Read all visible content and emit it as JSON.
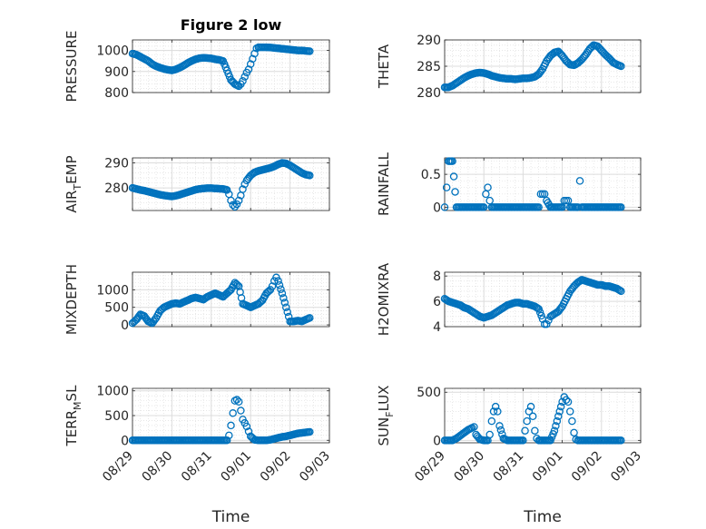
{
  "figure": {
    "title": "Figure 2 low",
    "marker_color": "#0072BD",
    "xlabel": "Time",
    "xticks": [
      "08/29",
      "08/30",
      "08/31",
      "09/01",
      "09/02",
      "09/03"
    ]
  },
  "chart_data": [
    {
      "type": "scatter",
      "title": "Figure 2 low",
      "ylabel": "PRESSURE",
      "ylim": [
        800,
        1050
      ],
      "yticks": [
        "800",
        "900",
        "1000"
      ],
      "ytick_values": [
        800,
        900,
        1000
      ],
      "xlim": [
        0,
        5
      ],
      "grid": true,
      "show_xticklabels": false,
      "x": [
        0.0,
        0.1,
        0.2,
        0.3,
        0.4,
        0.5,
        0.6,
        0.7,
        0.8,
        0.9,
        1.0,
        1.1,
        1.2,
        1.3,
        1.4,
        1.5,
        1.6,
        1.7,
        1.8,
        1.9,
        2.0,
        2.1,
        2.2,
        2.3,
        2.4,
        2.5,
        2.6,
        2.7,
        2.75,
        2.8,
        2.85,
        2.9,
        2.95,
        3.0,
        3.05,
        3.1,
        3.15,
        3.2,
        3.3,
        3.4,
        3.5,
        3.6,
        3.7,
        3.8,
        3.9,
        4.0,
        4.1,
        4.2,
        4.3,
        4.4,
        4.5
      ],
      "y": [
        985,
        980,
        970,
        960,
        950,
        935,
        925,
        918,
        912,
        908,
        905,
        910,
        918,
        928,
        940,
        950,
        958,
        963,
        965,
        964,
        962,
        958,
        955,
        950,
        905,
        860,
        840,
        830,
        840,
        855,
        875,
        895,
        910,
        935,
        960,
        985,
        1010,
        1015,
        1015,
        1015,
        1014,
        1012,
        1010,
        1008,
        1006,
        1004,
        1002,
        1000,
        1000,
        998,
        996
      ]
    },
    {
      "type": "scatter",
      "title": "",
      "ylabel": "THETA",
      "ylim": [
        280,
        290
      ],
      "yticks": [
        "280",
        "285",
        "290"
      ],
      "ytick_values": [
        280,
        285,
        290
      ],
      "xlim": [
        0,
        5
      ],
      "grid": true,
      "show_xticklabels": false,
      "x": [
        0.0,
        0.1,
        0.2,
        0.3,
        0.4,
        0.5,
        0.6,
        0.7,
        0.8,
        0.9,
        1.0,
        1.1,
        1.2,
        1.3,
        1.4,
        1.5,
        1.6,
        1.7,
        1.8,
        1.9,
        2.0,
        2.1,
        2.2,
        2.3,
        2.4,
        2.5,
        2.6,
        2.7,
        2.8,
        2.9,
        3.0,
        3.1,
        3.2,
        3.3,
        3.4,
        3.5,
        3.6,
        3.7,
        3.8,
        3.9,
        4.0,
        4.1,
        4.2,
        4.3,
        4.4,
        4.5
      ],
      "y": [
        281.0,
        281.0,
        281.3,
        281.8,
        282.3,
        282.8,
        283.2,
        283.5,
        283.7,
        283.8,
        283.7,
        283.5,
        283.2,
        283.0,
        282.8,
        282.7,
        282.6,
        282.6,
        282.5,
        282.6,
        282.7,
        282.7,
        282.8,
        283.0,
        283.5,
        284.5,
        286.0,
        287.0,
        287.6,
        287.8,
        287.0,
        286.0,
        285.3,
        285.2,
        285.6,
        286.3,
        287.2,
        288.3,
        289.0,
        288.8,
        288.0,
        287.2,
        286.5,
        285.7,
        285.3,
        285.0
      ]
    },
    {
      "type": "scatter",
      "title": "",
      "ylabel": "AIR_TEMP",
      "ylim": [
        271,
        292
      ],
      "yticks": [
        "280",
        "290"
      ],
      "ytick_values": [
        280,
        290
      ],
      "xlim": [
        0,
        5
      ],
      "grid": true,
      "show_xticklabels": false,
      "x": [
        0.0,
        0.1,
        0.2,
        0.3,
        0.4,
        0.5,
        0.6,
        0.7,
        0.8,
        0.9,
        1.0,
        1.1,
        1.2,
        1.3,
        1.4,
        1.5,
        1.6,
        1.7,
        1.8,
        1.9,
        2.0,
        2.1,
        2.2,
        2.3,
        2.4,
        2.45,
        2.5,
        2.55,
        2.6,
        2.65,
        2.7,
        2.75,
        2.8,
        2.85,
        2.9,
        3.0,
        3.1,
        3.2,
        3.3,
        3.4,
        3.5,
        3.6,
        3.7,
        3.8,
        3.9,
        4.0,
        4.1,
        4.2,
        4.3,
        4.4,
        4.5
      ],
      "y": [
        280.0,
        279.6,
        279.2,
        278.9,
        278.5,
        278.1,
        277.7,
        277.3,
        277.0,
        276.8,
        276.6,
        276.9,
        277.3,
        277.8,
        278.3,
        278.8,
        279.3,
        279.6,
        279.8,
        279.9,
        279.9,
        279.8,
        279.7,
        279.6,
        279.2,
        277.5,
        275.0,
        273.2,
        272.5,
        273.5,
        275.0,
        277.0,
        279.5,
        281.5,
        283.0,
        285.0,
        286.2,
        286.8,
        287.2,
        287.6,
        288.0,
        288.6,
        289.4,
        290.0,
        289.8,
        289.0,
        288.0,
        287.0,
        286.0,
        285.3,
        285.0
      ]
    },
    {
      "type": "scatter",
      "title": "",
      "ylabel": "RAINFALL",
      "ylim": [
        -0.05,
        0.75
      ],
      "yticks": [
        "0",
        "0.5"
      ],
      "ytick_values": [
        0,
        0.5
      ],
      "xlim": [
        0,
        5
      ],
      "grid": true,
      "show_xticklabels": false,
      "x": [
        0.0,
        0.05,
        0.1,
        0.2,
        0.3,
        0.4,
        0.5,
        0.6,
        0.7,
        0.8,
        0.9,
        1.0,
        1.05,
        1.1,
        1.15,
        1.2,
        1.3,
        1.4,
        1.5,
        1.6,
        1.7,
        1.8,
        1.9,
        2.0,
        2.1,
        2.2,
        2.3,
        2.4,
        2.45,
        2.5,
        2.55,
        2.6,
        2.7,
        2.8,
        2.9,
        3.0,
        3.05,
        3.1,
        3.15,
        3.2,
        3.3,
        3.4,
        3.45,
        3.5,
        3.6,
        3.7,
        3.8,
        3.9,
        4.0,
        4.1,
        4.2,
        4.3,
        4.4,
        4.5
      ],
      "y": [
        0.0,
        0.3,
        0.7,
        0.7,
        0.0,
        0.0,
        0.0,
        0.0,
        0.0,
        0.0,
        0.0,
        0.0,
        0.2,
        0.3,
        0.1,
        0.0,
        0.0,
        0.0,
        0.0,
        0.0,
        0.0,
        0.0,
        0.0,
        0.0,
        0.0,
        0.0,
        0.0,
        0.0,
        0.2,
        0.2,
        0.2,
        0.1,
        0.0,
        0.0,
        0.0,
        0.0,
        0.1,
        0.1,
        0.1,
        0.0,
        0.0,
        0.0,
        0.4,
        0.0,
        0.0,
        0.0,
        0.0,
        0.0,
        0.0,
        0.0,
        0.0,
        0.0,
        0.0,
        0.0
      ]
    },
    {
      "type": "scatter",
      "title": "",
      "ylabel": "MIXDEPTH",
      "ylim": [
        -50,
        1500
      ],
      "yticks": [
        "0",
        "500",
        "1000"
      ],
      "ytick_values": [
        0,
        500,
        1000
      ],
      "xlim": [
        0,
        5
      ],
      "grid": true,
      "show_xticklabels": false,
      "x": [
        0.0,
        0.1,
        0.2,
        0.3,
        0.4,
        0.5,
        0.6,
        0.7,
        0.8,
        0.9,
        1.0,
        1.1,
        1.2,
        1.3,
        1.4,
        1.5,
        1.6,
        1.7,
        1.8,
        1.9,
        2.0,
        2.1,
        2.2,
        2.3,
        2.4,
        2.5,
        2.6,
        2.7,
        2.8,
        2.9,
        3.0,
        3.1,
        3.2,
        3.3,
        3.4,
        3.5,
        3.55,
        3.6,
        3.65,
        3.7,
        3.8,
        3.9,
        4.0,
        4.1,
        4.2,
        4.3,
        4.4,
        4.5
      ],
      "y": [
        50,
        150,
        300,
        250,
        100,
        50,
        200,
        400,
        500,
        550,
        600,
        620,
        600,
        650,
        700,
        750,
        780,
        750,
        720,
        800,
        850,
        900,
        850,
        800,
        900,
        1000,
        1200,
        1100,
        600,
        550,
        500,
        550,
        600,
        700,
        900,
        1000,
        1100,
        1250,
        1350,
        1250,
        900,
        500,
        100,
        100,
        120,
        100,
        150,
        200
      ]
    },
    {
      "type": "scatter",
      "title": "",
      "ylabel": "H2OMIXRA",
      "ylim": [
        4,
        8.3
      ],
      "yticks": [
        "4",
        "6",
        "8"
      ],
      "ytick_values": [
        4,
        6,
        8
      ],
      "xlim": [
        0,
        5
      ],
      "grid": true,
      "show_xticklabels": false,
      "x": [
        0.0,
        0.1,
        0.2,
        0.3,
        0.4,
        0.5,
        0.6,
        0.7,
        0.8,
        0.9,
        1.0,
        1.1,
        1.2,
        1.3,
        1.4,
        1.5,
        1.6,
        1.7,
        1.8,
        1.9,
        2.0,
        2.1,
        2.2,
        2.3,
        2.4,
        2.5,
        2.55,
        2.6,
        2.65,
        2.7,
        2.8,
        2.9,
        3.0,
        3.1,
        3.2,
        3.3,
        3.4,
        3.5,
        3.6,
        3.7,
        3.8,
        3.9,
        4.0,
        4.1,
        4.2,
        4.3,
        4.4,
        4.5
      ],
      "y": [
        6.2,
        6.0,
        5.9,
        5.8,
        5.7,
        5.5,
        5.4,
        5.2,
        5.0,
        4.8,
        4.7,
        4.8,
        4.9,
        5.1,
        5.3,
        5.5,
        5.7,
        5.8,
        5.9,
        5.9,
        5.8,
        5.8,
        5.7,
        5.6,
        5.4,
        4.6,
        4.2,
        4.2,
        4.5,
        4.8,
        5.0,
        5.2,
        5.6,
        6.2,
        6.8,
        7.2,
        7.5,
        7.7,
        7.6,
        7.5,
        7.4,
        7.3,
        7.3,
        7.2,
        7.2,
        7.1,
        7.0,
        6.8
      ]
    },
    {
      "type": "scatter",
      "title": "",
      "ylabel": "TERR_MSL",
      "ylim": [
        -50,
        1050
      ],
      "yticks": [
        "0",
        "500",
        "1000"
      ],
      "ytick_values": [
        0,
        500,
        1000
      ],
      "xlim": [
        0,
        5
      ],
      "grid": true,
      "show_xticklabels": true,
      "x": [
        0.0,
        0.1,
        0.2,
        0.3,
        0.4,
        0.5,
        0.6,
        0.7,
        0.8,
        0.9,
        1.0,
        1.1,
        1.2,
        1.3,
        1.4,
        1.5,
        1.6,
        1.7,
        1.8,
        1.9,
        2.0,
        2.1,
        2.2,
        2.3,
        2.4,
        2.45,
        2.5,
        2.55,
        2.6,
        2.65,
        2.7,
        2.75,
        2.8,
        2.85,
        2.9,
        2.95,
        3.0,
        3.1,
        3.2,
        3.3,
        3.4,
        3.5,
        3.6,
        3.7,
        3.8,
        3.9,
        4.0,
        4.1,
        4.2,
        4.3,
        4.4,
        4.5
      ],
      "y": [
        0,
        0,
        0,
        0,
        0,
        0,
        0,
        0,
        0,
        0,
        0,
        0,
        0,
        0,
        0,
        0,
        0,
        0,
        0,
        0,
        0,
        0,
        0,
        0,
        0,
        100,
        300,
        550,
        800,
        820,
        780,
        600,
        420,
        350,
        280,
        180,
        80,
        10,
        0,
        0,
        0,
        10,
        30,
        50,
        70,
        80,
        100,
        120,
        140,
        150,
        160,
        170
      ]
    },
    {
      "type": "scatter",
      "title": "",
      "ylabel": "SUN_FLUX",
      "ylim": [
        -25,
        540
      ],
      "yticks": [
        "0",
        "500"
      ],
      "ytick_values": [
        0,
        500
      ],
      "xlim": [
        0,
        5
      ],
      "grid": true,
      "show_xticklabels": true,
      "x": [
        0.0,
        0.1,
        0.2,
        0.3,
        0.4,
        0.5,
        0.6,
        0.7,
        0.75,
        0.8,
        0.9,
        1.0,
        1.1,
        1.15,
        1.2,
        1.25,
        1.3,
        1.35,
        1.4,
        1.5,
        1.6,
        1.7,
        1.8,
        1.9,
        2.0,
        2.05,
        2.1,
        2.15,
        2.2,
        2.25,
        2.3,
        2.35,
        2.4,
        2.5,
        2.6,
        2.7,
        2.8,
        2.9,
        3.0,
        3.05,
        3.1,
        3.15,
        3.2,
        3.25,
        3.3,
        3.35,
        3.4,
        3.5,
        3.6,
        3.7,
        3.8,
        3.9,
        4.0,
        4.1,
        4.2,
        4.3,
        4.4,
        4.5
      ],
      "y": [
        0,
        0,
        0,
        20,
        50,
        80,
        110,
        130,
        140,
        60,
        10,
        0,
        0,
        60,
        200,
        300,
        350,
        300,
        150,
        20,
        0,
        0,
        0,
        0,
        0,
        100,
        200,
        300,
        350,
        250,
        100,
        20,
        0,
        0,
        0,
        0,
        100,
        250,
        400,
        450,
        420,
        400,
        300,
        200,
        80,
        10,
        0,
        0,
        0,
        0,
        0,
        0,
        0,
        0,
        0,
        0,
        0,
        0
      ]
    }
  ]
}
